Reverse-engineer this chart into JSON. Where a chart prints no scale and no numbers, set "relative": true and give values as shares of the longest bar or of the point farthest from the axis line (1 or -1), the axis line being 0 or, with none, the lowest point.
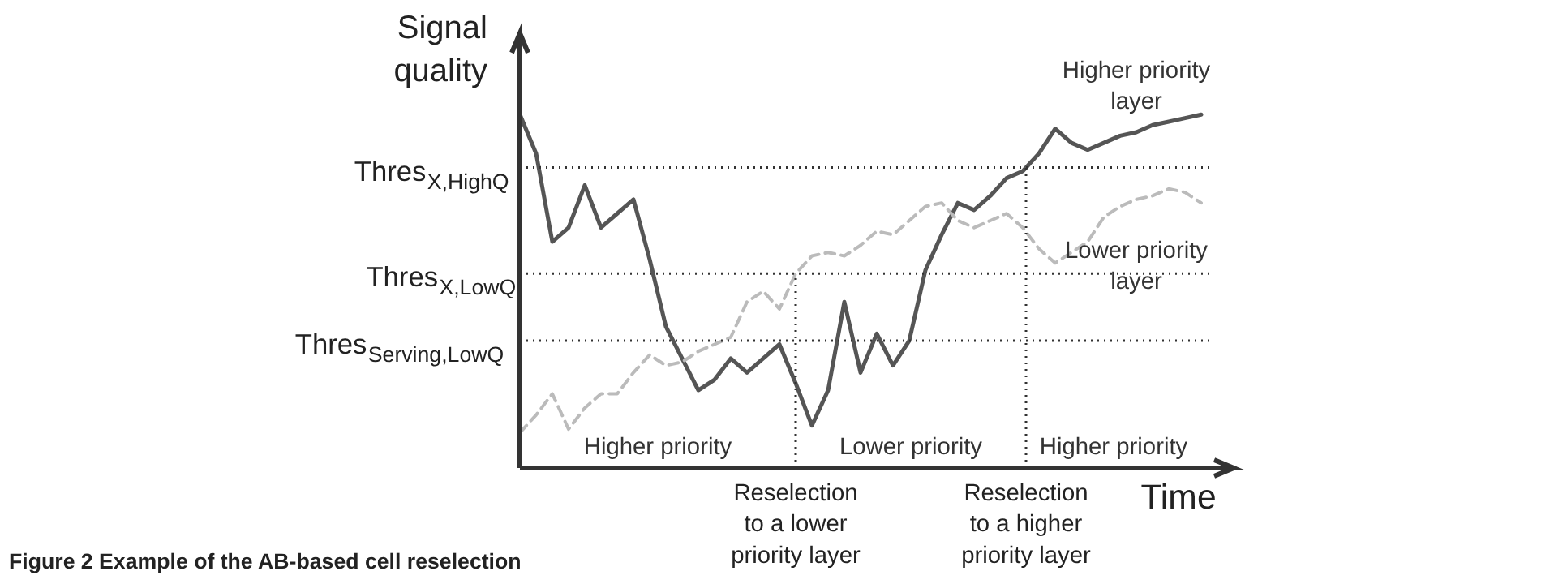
{
  "chart_data": {
    "type": "line",
    "relative": true,
    "ylabel": "Signal quality",
    "xlabel": "Time",
    "categories": [
      null,
      null,
      null,
      null,
      null,
      null,
      null,
      null,
      null,
      null,
      null,
      null,
      null,
      null,
      null,
      null,
      null,
      null,
      null,
      null,
      null,
      null,
      null,
      null,
      null,
      null,
      null,
      null,
      null,
      null,
      null,
      null,
      null,
      null,
      null,
      null,
      null,
      null,
      null,
      null,
      null,
      null,
      null
    ],
    "series": [
      {
        "name": "Higher priority layer",
        "color": "#555555",
        "line_style": "solid",
        "values": [
          1.0,
          0.89,
          0.64,
          0.68,
          0.8,
          0.68,
          0.72,
          0.76,
          0.59,
          0.4,
          0.31,
          0.22,
          0.25,
          0.31,
          0.27,
          0.31,
          0.35,
          0.24,
          0.12,
          0.22,
          0.47,
          0.27,
          0.38,
          0.29,
          0.36,
          0.56,
          0.66,
          0.75,
          0.73,
          0.77,
          0.82,
          0.84,
          0.89,
          0.96,
          0.92,
          0.9,
          0.92,
          0.94,
          0.95,
          0.97,
          0.98,
          0.99,
          1.0
        ]
      },
      {
        "name": "Lower priority layer",
        "color": "#bbbbbb",
        "line_style": "dashed",
        "values": [
          0.1,
          0.15,
          0.21,
          0.11,
          0.17,
          0.21,
          0.21,
          0.27,
          0.32,
          0.29,
          0.3,
          0.33,
          0.35,
          0.37,
          0.47,
          0.5,
          0.45,
          0.55,
          0.6,
          0.61,
          0.6,
          0.63,
          0.67,
          0.66,
          0.7,
          0.74,
          0.75,
          0.7,
          0.68,
          0.7,
          0.72,
          0.68,
          0.62,
          0.58,
          0.61,
          0.64,
          0.71,
          0.74,
          0.76,
          0.77,
          0.79,
          0.78,
          0.75
        ]
      }
    ],
    "ref_lines": [
      {
        "axis": "y",
        "value": 0.85,
        "label": "Thres$_{X,HighQ}$",
        "line_style": "dotted",
        "color": "#333333"
      },
      {
        "axis": "y",
        "value": 0.55,
        "label": "Thres$_{X,LowQ}$",
        "line_style": "dotted",
        "color": "#333333"
      },
      {
        "axis": "y",
        "value": 0.36,
        "label": "Thres$_{Serving,LowQ}$",
        "line_style": "dotted",
        "color": "#333333"
      }
    ],
    "annotations": [
      "Higher priority",
      "Lower priority",
      "Higher priority",
      "Reselection\nto a lower\npriority layer",
      "Reselection\nto a higher\npriority layer",
      "Figure 2 Example of the AB-based cell reselection"
    ],
    "grid": false,
    "marker": "none"
  }
}
